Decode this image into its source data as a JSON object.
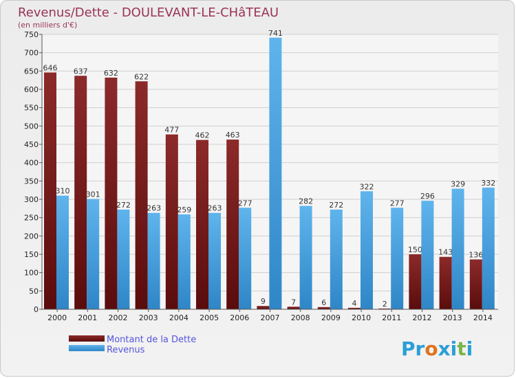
{
  "chart_data": {
    "type": "bar",
    "title": "Revenus/Dette - DOULEVANT-LE-CHâTEAU",
    "subtitle": "(en milliers d'€)",
    "categories": [
      "2000",
      "2001",
      "2002",
      "2003",
      "2004",
      "2005",
      "2006",
      "2007",
      "2008",
      "2009",
      "2010",
      "2011",
      "2012",
      "2013",
      "2014"
    ],
    "series": [
      {
        "name": "Montant de la Dette",
        "color": "#7a1c1c",
        "values": [
          646,
          637,
          632,
          622,
          477,
          462,
          463,
          9,
          7,
          6,
          4,
          2,
          150,
          143,
          136
        ]
      },
      {
        "name": "Revenus",
        "color": "#4aa3e0",
        "values": [
          310,
          301,
          272,
          263,
          259,
          263,
          277,
          741,
          282,
          272,
          322,
          277,
          296,
          329,
          332
        ]
      }
    ],
    "yticks": [
      0,
      50,
      100,
      150,
      200,
      250,
      300,
      350,
      400,
      450,
      500,
      550,
      600,
      650,
      700,
      750
    ],
    "ylim": [
      0,
      750
    ],
    "grid": true,
    "legend_position": "bottom-left"
  },
  "branding": {
    "logo_text": "Proxiti",
    "logo_letters": [
      {
        "ch": "P",
        "color": "#2a9fd6"
      },
      {
        "ch": "r",
        "color": "#2a9fd6"
      },
      {
        "ch": "o",
        "color": "#e0731f"
      },
      {
        "ch": "x",
        "color": "#2a9fd6"
      },
      {
        "ch": "i",
        "color": "#2a9fd6"
      },
      {
        "ch": "t",
        "color": "#7ab648"
      },
      {
        "ch": "i",
        "color": "#2a9fd6"
      }
    ]
  }
}
